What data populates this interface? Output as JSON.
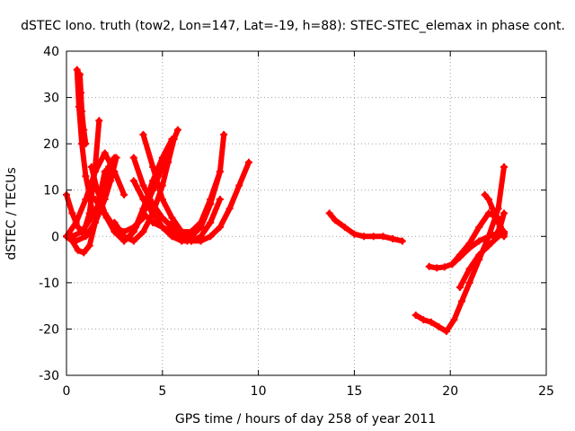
{
  "chart_data": {
    "type": "scatter",
    "title": "dSTEC Iono. truth (tow2, Lon=147, Lat=-19, h=88): STEC-STEC_elemax in phase cont.",
    "xlabel": "GPS time / hours of day 258 of year 2011",
    "ylabel": "dSTEC  / TECUs",
    "xlim": [
      0,
      25
    ],
    "ylim": [
      -30,
      40
    ],
    "xticks": [
      0,
      5,
      10,
      15,
      20,
      25
    ],
    "yticks": [
      -30,
      -20,
      -10,
      0,
      10,
      20,
      30,
      40
    ],
    "grid": true,
    "marker": "+",
    "color": "#ff0000",
    "series": [
      {
        "x": [
          0.55,
          0.65,
          0.8,
          1.0,
          1.2,
          1.35
        ],
        "y": [
          36,
          28,
          20,
          13,
          9,
          5
        ]
      },
      {
        "x": [
          0.7,
          0.75,
          0.8,
          0.9,
          1.0
        ],
        "y": [
          35,
          31,
          27,
          23,
          20
        ]
      },
      {
        "x": [
          0.0,
          0.3,
          0.6,
          0.9,
          1.2,
          1.5,
          1.7
        ],
        "y": [
          9,
          5,
          2,
          1,
          5,
          15,
          25
        ]
      },
      {
        "x": [
          0.0,
          0.3,
          0.6,
          0.9,
          1.2,
          1.5,
          1.8,
          2.0
        ],
        "y": [
          0,
          -1,
          -3,
          -3.5,
          -2,
          3,
          10,
          14
        ]
      },
      {
        "x": [
          0.0,
          0.5,
          1.0,
          1.5,
          2.0,
          2.3,
          2.6
        ],
        "y": [
          0,
          -1,
          0,
          3,
          8,
          12,
          17
        ]
      },
      {
        "x": [
          0.3,
          0.8,
          1.3,
          1.8,
          2.2,
          2.5
        ],
        "y": [
          0,
          1,
          4,
          8,
          15,
          17
        ]
      },
      {
        "x": [
          0.0,
          0.5,
          1.0,
          1.5,
          2.0,
          2.5,
          3.0
        ],
        "y": [
          0,
          3,
          8,
          14,
          18,
          14,
          9
        ]
      },
      {
        "x": [
          1.3,
          1.6,
          2.0,
          2.5,
          3.0,
          3.5,
          4.0
        ],
        "y": [
          15,
          10,
          5,
          2,
          1,
          2,
          4
        ]
      },
      {
        "x": [
          1.5,
          1.8,
          2.1,
          2.5,
          3.0,
          3.5,
          4.0,
          4.5,
          4.8
        ],
        "y": [
          8,
          6,
          4,
          1,
          -1,
          1,
          5,
          10,
          13
        ]
      },
      {
        "x": [
          2.5,
          3.0,
          3.5,
          4.0,
          4.5,
          5.0,
          5.3,
          5.6
        ],
        "y": [
          3,
          0,
          -1,
          1,
          5,
          11,
          16,
          21
        ]
      },
      {
        "x": [
          3.0,
          3.3,
          3.6,
          4.0,
          4.5,
          5.0,
          5.5
        ],
        "y": [
          -1,
          0,
          2,
          6,
          12,
          17,
          21
        ]
      },
      {
        "x": [
          3.3,
          3.6,
          4.0,
          4.5,
          5.0,
          5.5,
          5.8
        ],
        "y": [
          0,
          2,
          5,
          10,
          15,
          20,
          23
        ]
      },
      {
        "x": [
          4.0,
          4.5,
          5.0,
          5.5,
          6.0,
          6.5,
          7.0,
          7.5
        ],
        "y": [
          22,
          15,
          8,
          4,
          1,
          0,
          2,
          7
        ]
      },
      {
        "x": [
          3.5,
          4.0,
          4.5,
          5.0,
          5.5,
          6.0,
          6.5
        ],
        "y": [
          17,
          11,
          7,
          4,
          2,
          0,
          -1
        ]
      },
      {
        "x": [
          3.5,
          4.0,
          4.5,
          5.0,
          5.5,
          6.0,
          6.3
        ],
        "y": [
          12,
          8,
          5,
          2,
          0,
          -1,
          -1
        ]
      },
      {
        "x": [
          4.0,
          4.5,
          5.0,
          5.5,
          6.0,
          6.5,
          7.0,
          7.5,
          8.0
        ],
        "y": [
          5,
          3,
          2,
          1,
          0,
          -1,
          0,
          3,
          8
        ]
      },
      {
        "x": [
          5.5,
          6.0,
          6.5,
          7.0,
          7.5,
          8.0,
          8.5,
          9.0,
          9.5
        ],
        "y": [
          2,
          0,
          -1,
          -1,
          0,
          2,
          6,
          11,
          16
        ]
      },
      {
        "x": [
          5.0,
          5.5,
          6.0,
          6.5,
          7.0,
          7.5,
          8.0
        ],
        "y": [
          4,
          2,
          1,
          1,
          3,
          8,
          14
        ]
      },
      {
        "x": [
          5.5,
          6.0,
          6.5,
          7.0,
          7.5,
          8.0,
          8.2
        ],
        "y": [
          3,
          1,
          0,
          2,
          7,
          14,
          22
        ]
      },
      {
        "x": [
          13.7,
          14.0,
          14.5,
          15.0,
          15.5,
          16.0,
          16.5,
          17.0,
          17.5
        ],
        "y": [
          5,
          3.5,
          2,
          0.5,
          0,
          0,
          0,
          -0.5,
          -1
        ]
      },
      {
        "x": [
          18.2,
          18.6,
          19.0,
          19.4,
          19.8,
          20.2,
          20.6,
          21.0,
          21.5,
          22.0,
          22.5,
          22.8
        ],
        "y": [
          -17,
          -18,
          -18.5,
          -19.5,
          -20.5,
          -18,
          -14,
          -10,
          -5,
          0,
          6,
          15
        ]
      },
      {
        "x": [
          18.9,
          19.3,
          19.7,
          20.1,
          20.5,
          21.0,
          21.5,
          22.0,
          22.5,
          22.8
        ],
        "y": [
          -6.5,
          -6.8,
          -6.6,
          -6,
          -4.5,
          -2.5,
          -1,
          0,
          0.5,
          0.8
        ]
      },
      {
        "x": [
          20.5,
          21.0,
          21.5,
          22.0,
          22.5,
          22.8
        ],
        "y": [
          -11,
          -7,
          -4,
          -2,
          0,
          0.5
        ]
      },
      {
        "x": [
          20.1,
          20.5,
          21.0,
          21.5,
          22.0,
          22.5,
          22.8
        ],
        "y": [
          -6,
          -4,
          -1.5,
          2,
          5,
          4,
          0
        ]
      },
      {
        "x": [
          21.8,
          22.0,
          22.2,
          22.4,
          22.6,
          22.8
        ],
        "y": [
          9,
          8,
          6,
          4,
          2,
          1
        ]
      },
      {
        "x": [
          22.0,
          22.2,
          22.4,
          22.6,
          22.8
        ],
        "y": [
          0,
          0.3,
          0.5,
          2,
          5
        ]
      }
    ]
  }
}
